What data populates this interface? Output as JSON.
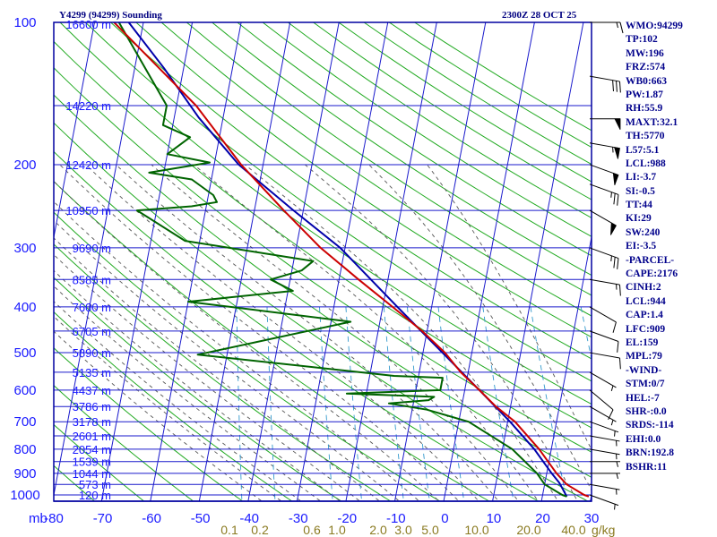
{
  "header": {
    "station_title": "Y4299 (94299) Sounding",
    "valid_time": "2300Z 28 OCT 25"
  },
  "indices": [
    "WMO:94299",
    "TP:102",
    "MW:196",
    "FRZ:574",
    "WB0:663",
    "PW:1.87",
    "RH:55.9",
    "MAXT:32.1",
    "TH:5770",
    "L57:5.1",
    "LCL:988",
    "LI:-3.7",
    "SI:-0.5",
    "TT:44",
    "KI:29",
    "SW:240",
    "EI:-3.5",
    "-PARCEL-",
    "CAPE:2176",
    "CINH:2",
    "LCL:944",
    "CAP:1.4",
    "LFC:909",
    "EL:159",
    "MPL:79",
    "-WIND-",
    "STM:0/7",
    "HEL:-7",
    "SHR-:0.0",
    "SRDS:-114",
    "EHI:0.0",
    "BRN:192.8",
    "BSHR:11"
  ],
  "colors": {
    "frame": "#0000a0",
    "grid": "#1a1acc",
    "dry_adiabat": "#22aa22",
    "moist_adiabat": "#555555",
    "mixing_ratio": "#3399cc",
    "temperature": "#cc0000",
    "dewpoint": "#006400",
    "parcel": "#0000aa",
    "wind_barb": "#000000"
  },
  "chart_data": {
    "type": "skew-t log-p",
    "pressure_unit_label": "mb",
    "mixing_ratio_unit_label": "g/kg",
    "pressure_range_mb": [
      100,
      1050
    ],
    "temperature_range_c": [
      -80,
      30
    ],
    "pressure_axis_log": true,
    "pressure_ticks": [
      100,
      200,
      300,
      400,
      500,
      600,
      700,
      800,
      900,
      1000
    ],
    "temperature_ticks": [
      -80,
      -70,
      -60,
      -50,
      -40,
      -30,
      -20,
      -10,
      0,
      10,
      20,
      30
    ],
    "mixing_ratio_ticks": [
      "0.1",
      "0.2",
      "0.6",
      "1.0",
      "2.0",
      "3.0",
      "5.0",
      "10.0",
      "20.0",
      "40.0"
    ],
    "height_labels": [
      {
        "p": 100,
        "label": "16600 m"
      },
      {
        "p": 150,
        "label": "14220 m"
      },
      {
        "p": 200,
        "label": "12420 m"
      },
      {
        "p": 250,
        "label": "10950 m"
      },
      {
        "p": 300,
        "label": "9690 m"
      },
      {
        "p": 350,
        "label": "8585 m"
      },
      {
        "p": 400,
        "label": "7600 m"
      },
      {
        "p": 450,
        "label": "6705 m"
      },
      {
        "p": 500,
        "label": "5890 m"
      },
      {
        "p": 550,
        "label": "5135 m"
      },
      {
        "p": 600,
        "label": "4437 m"
      },
      {
        "p": 650,
        "label": "3786 m"
      },
      {
        "p": 700,
        "label": "3178 m"
      },
      {
        "p": 750,
        "label": "2601 m"
      },
      {
        "p": 800,
        "label": "2054 m"
      },
      {
        "p": 850,
        "label": "1539 m"
      },
      {
        "p": 900,
        "label": "1044 m"
      },
      {
        "p": 950,
        "label": "573 m"
      },
      {
        "p": 1000,
        "label": "120 m"
      }
    ],
    "temperature_profile": [
      {
        "p": 100,
        "t": -86
      },
      {
        "p": 125,
        "t": -75
      },
      {
        "p": 150,
        "t": -66
      },
      {
        "p": 200,
        "t": -54.5
      },
      {
        "p": 250,
        "t": -44
      },
      {
        "p": 300,
        "t": -35
      },
      {
        "p": 350,
        "t": -26
      },
      {
        "p": 400,
        "t": -18
      },
      {
        "p": 450,
        "t": -11
      },
      {
        "p": 500,
        "t": -5.5
      },
      {
        "p": 550,
        "t": -1.5
      },
      {
        "p": 600,
        "t": 3
      },
      {
        "p": 650,
        "t": 7
      },
      {
        "p": 700,
        "t": 11.5
      },
      {
        "p": 800,
        "t": 17.5
      },
      {
        "p": 900,
        "t": 22
      },
      {
        "p": 950,
        "t": 24.5
      },
      {
        "p": 1000,
        "t": 28.5
      },
      {
        "p": 1008,
        "t": 29.5
      }
    ],
    "dewpoint_profile": [
      {
        "p": 100,
        "td": -85
      },
      {
        "p": 150,
        "td": -72
      },
      {
        "p": 165,
        "td": -72
      },
      {
        "p": 175,
        "td": -66
      },
      {
        "p": 190,
        "td": -70
      },
      {
        "p": 198,
        "td": -61
      },
      {
        "p": 208,
        "td": -73
      },
      {
        "p": 215,
        "td": -64
      },
      {
        "p": 232,
        "td": -59
      },
      {
        "p": 240,
        "td": -58
      },
      {
        "p": 245,
        "td": -63
      },
      {
        "p": 250,
        "td": -74
      },
      {
        "p": 290,
        "td": -63
      },
      {
        "p": 320,
        "td": -36
      },
      {
        "p": 335,
        "td": -38
      },
      {
        "p": 350,
        "td": -44
      },
      {
        "p": 370,
        "td": -39
      },
      {
        "p": 390,
        "td": -60
      },
      {
        "p": 430,
        "td": -26
      },
      {
        "p": 505,
        "td": -56
      },
      {
        "p": 560,
        "td": -15
      },
      {
        "p": 565,
        "td": -5
      },
      {
        "p": 600,
        "td": -5
      },
      {
        "p": 610,
        "td": -24
      },
      {
        "p": 620,
        "td": -6
      },
      {
        "p": 630,
        "td": -7
      },
      {
        "p": 640,
        "td": -15
      },
      {
        "p": 660,
        "td": -7
      },
      {
        "p": 700,
        "td": 2
      },
      {
        "p": 800,
        "td": 12
      },
      {
        "p": 900,
        "td": 18
      },
      {
        "p": 950,
        "td": 20
      },
      {
        "p": 1000,
        "td": 24
      },
      {
        "p": 1008,
        "td": 25
      }
    ],
    "parcel_profile": [
      {
        "p": 1008,
        "t": 25
      },
      {
        "p": 944,
        "t": 23
      },
      {
        "p": 900,
        "t": 21
      },
      {
        "p": 800,
        "t": 16.5
      },
      {
        "p": 700,
        "t": 10.5
      },
      {
        "p": 600,
        "t": 3
      },
      {
        "p": 500,
        "t": -6
      },
      {
        "p": 400,
        "t": -17
      },
      {
        "p": 300,
        "t": -31
      },
      {
        "p": 250,
        "t": -42
      },
      {
        "p": 200,
        "t": -55
      },
      {
        "p": 159,
        "t": -65
      },
      {
        "p": 125,
        "t": -74
      },
      {
        "p": 100,
        "t": -83
      }
    ],
    "wind_profile": [
      {
        "p": 1000,
        "dir": 110,
        "spd": 5
      },
      {
        "p": 950,
        "dir": 100,
        "spd": 5
      },
      {
        "p": 900,
        "dir": 90,
        "spd": 5
      },
      {
        "p": 850,
        "dir": 90,
        "spd": 5
      },
      {
        "p": 800,
        "dir": 100,
        "spd": 5
      },
      {
        "p": 750,
        "dir": 100,
        "spd": 5
      },
      {
        "p": 700,
        "dir": 110,
        "spd": 5
      },
      {
        "p": 650,
        "dir": 120,
        "spd": 5
      },
      {
        "p": 600,
        "dir": 130,
        "spd": 10
      },
      {
        "p": 550,
        "dir": 120,
        "spd": 5
      },
      {
        "p": 500,
        "dir": 100,
        "spd": 10
      },
      {
        "p": 450,
        "dir": 110,
        "spd": 10
      },
      {
        "p": 400,
        "dir": 120,
        "spd": 10
      },
      {
        "p": 350,
        "dir": 100,
        "spd": 15
      },
      {
        "p": 300,
        "dir": 110,
        "spd": 25
      },
      {
        "p": 250,
        "dir": 120,
        "spd": 50
      },
      {
        "p": 220,
        "dir": 110,
        "spd": 25
      },
      {
        "p": 200,
        "dir": 110,
        "spd": 50
      },
      {
        "p": 180,
        "dir": 100,
        "spd": 55
      },
      {
        "p": 160,
        "dir": 90,
        "spd": 50
      },
      {
        "p": 130,
        "dir": 100,
        "spd": 30
      },
      {
        "p": 100,
        "dir": 90,
        "spd": 15
      }
    ]
  }
}
